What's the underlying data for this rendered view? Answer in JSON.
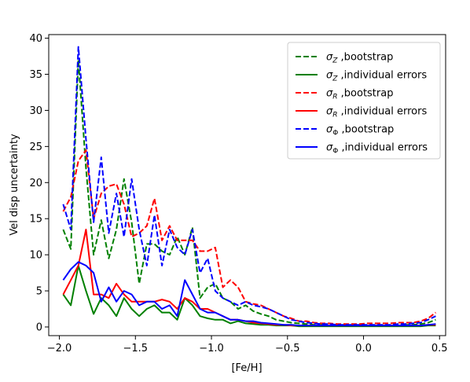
{
  "chart_data": {
    "type": "line",
    "xlabel": "[Fe/H]",
    "ylabel": "Vel disp uncertainty",
    "xlim": [
      -2.07,
      0.54
    ],
    "ylim": [
      -1.2,
      40.5
    ],
    "xticks": [
      -2.0,
      -1.5,
      -1.0,
      -0.5,
      0.0,
      0.5
    ],
    "xtick_labels": [
      "−2.0",
      "−1.5",
      "−1.0",
      "−0.5",
      "0.0",
      "0.5"
    ],
    "yticks": [
      0,
      5,
      10,
      15,
      20,
      25,
      30,
      35,
      40
    ],
    "ytick_labels": [
      "0",
      "5",
      "10",
      "15",
      "20",
      "25",
      "30",
      "35",
      "40"
    ],
    "grid": false,
    "legend_position": "top-right",
    "x": [
      -1.975,
      -1.925,
      -1.875,
      -1.825,
      -1.775,
      -1.725,
      -1.675,
      -1.625,
      -1.575,
      -1.525,
      -1.475,
      -1.425,
      -1.375,
      -1.325,
      -1.275,
      -1.225,
      -1.175,
      -1.125,
      -1.075,
      -1.025,
      -0.975,
      -0.925,
      -0.875,
      -0.825,
      -0.775,
      -0.725,
      -0.675,
      -0.625,
      -0.575,
      -0.525,
      -0.475,
      -0.425,
      -0.375,
      -0.325,
      -0.275,
      -0.225,
      -0.175,
      -0.125,
      -0.075,
      -0.025,
      0.025,
      0.075,
      0.125,
      0.175,
      0.225,
      0.275,
      0.325,
      0.375,
      0.425,
      0.475
    ],
    "series": [
      {
        "name": "σ",
        "sub": "Z",
        "tail": " ,bootstrap",
        "color": "#008000",
        "dash": true,
        "values": [
          13.5,
          10.8,
          37.0,
          22.0,
          10.0,
          14.8,
          9.5,
          13.5,
          20.5,
          14.5,
          6.0,
          11.5,
          11.5,
          10.5,
          10.0,
          12.5,
          10.0,
          13.8,
          4.0,
          5.5,
          6.0,
          4.0,
          3.5,
          2.5,
          3.0,
          2.2,
          1.8,
          1.5,
          1.0,
          0.8,
          0.6,
          0.5,
          0.4,
          0.3,
          0.3,
          0.2,
          0.2,
          0.2,
          0.2,
          0.2,
          0.2,
          0.2,
          0.2,
          0.2,
          0.2,
          0.3,
          0.3,
          0.4,
          0.6,
          1.0
        ]
      },
      {
        "name": "σ",
        "sub": "Z",
        "tail": " ,individual errors",
        "color": "#008000",
        "dash": false,
        "values": [
          4.5,
          3.0,
          8.5,
          5.0,
          1.8,
          4.0,
          3.0,
          1.5,
          4.0,
          2.5,
          1.5,
          2.5,
          3.0,
          2.0,
          2.0,
          1.0,
          4.0,
          3.0,
          1.5,
          1.2,
          1.0,
          1.0,
          0.5,
          0.8,
          0.5,
          0.4,
          0.3,
          0.3,
          0.2,
          0.2,
          0.2,
          0.1,
          0.1,
          0.1,
          0.1,
          0.1,
          0.1,
          0.1,
          0.1,
          0.1,
          0.1,
          0.1,
          0.1,
          0.1,
          0.1,
          0.1,
          0.1,
          0.1,
          0.2,
          0.2
        ]
      },
      {
        "name": "σ",
        "sub": "R",
        "tail": " ,bootstrap",
        "color": "#ff0000",
        "dash": true,
        "values": [
          16.0,
          18.0,
          23.0,
          24.5,
          15.0,
          18.5,
          19.5,
          19.8,
          17.0,
          12.5,
          13.0,
          14.0,
          17.8,
          12.0,
          14.0,
          12.0,
          12.0,
          12.0,
          10.5,
          10.5,
          11.0,
          5.5,
          6.5,
          5.5,
          3.5,
          3.2,
          3.0,
          2.5,
          2.0,
          1.5,
          1.2,
          0.8,
          0.8,
          0.6,
          0.5,
          0.5,
          0.4,
          0.4,
          0.4,
          0.4,
          0.5,
          0.5,
          0.5,
          0.5,
          0.6,
          0.6,
          0.6,
          0.8,
          1.2,
          2.0
        ]
      },
      {
        "name": "σ",
        "sub": "R",
        "tail": " ,individual errors",
        "color": "#ff0000",
        "dash": false,
        "values": [
          4.5,
          6.5,
          8.5,
          13.5,
          4.5,
          4.5,
          4.0,
          6.0,
          4.5,
          3.5,
          3.5,
          3.5,
          3.5,
          3.8,
          3.5,
          2.5,
          4.0,
          3.5,
          2.5,
          2.5,
          2.0,
          1.5,
          1.0,
          1.0,
          0.8,
          0.6,
          0.5,
          0.4,
          0.3,
          0.3,
          0.2,
          0.2,
          0.2,
          0.2,
          0.2,
          0.2,
          0.2,
          0.2,
          0.2,
          0.2,
          0.2,
          0.2,
          0.2,
          0.2,
          0.2,
          0.2,
          0.2,
          0.2,
          0.3,
          0.3
        ]
      },
      {
        "name": "σ",
        "sub": "Φ",
        "tail": " ,bootstrap",
        "color": "#0000ff",
        "dash": true,
        "values": [
          17.0,
          13.5,
          38.8,
          26.0,
          14.5,
          23.5,
          13.0,
          18.5,
          12.5,
          20.5,
          13.5,
          8.5,
          15.5,
          8.5,
          13.5,
          11.0,
          10.0,
          13.5,
          7.5,
          9.5,
          5.0,
          4.0,
          3.5,
          3.0,
          3.5,
          3.0,
          2.8,
          2.5,
          2.0,
          1.5,
          1.0,
          0.8,
          0.6,
          0.5,
          0.4,
          0.4,
          0.3,
          0.3,
          0.3,
          0.3,
          0.3,
          0.3,
          0.3,
          0.3,
          0.4,
          0.4,
          0.5,
          0.6,
          1.0,
          1.5
        ]
      },
      {
        "name": "σ",
        "sub": "Φ",
        "tail": " ,individual errors",
        "color": "#0000ff",
        "dash": false,
        "values": [
          6.5,
          8.0,
          9.0,
          8.5,
          7.5,
          3.5,
          5.5,
          3.5,
          5.0,
          4.5,
          3.0,
          3.5,
          3.5,
          2.5,
          3.0,
          1.5,
          6.5,
          4.5,
          2.5,
          2.0,
          2.0,
          1.5,
          1.0,
          1.0,
          0.8,
          0.8,
          0.6,
          0.5,
          0.4,
          0.3,
          0.3,
          0.2,
          0.2,
          0.2,
          0.2,
          0.2,
          0.2,
          0.2,
          0.2,
          0.2,
          0.2,
          0.2,
          0.2,
          0.2,
          0.2,
          0.2,
          0.2,
          0.2,
          0.3,
          0.4
        ]
      }
    ]
  }
}
